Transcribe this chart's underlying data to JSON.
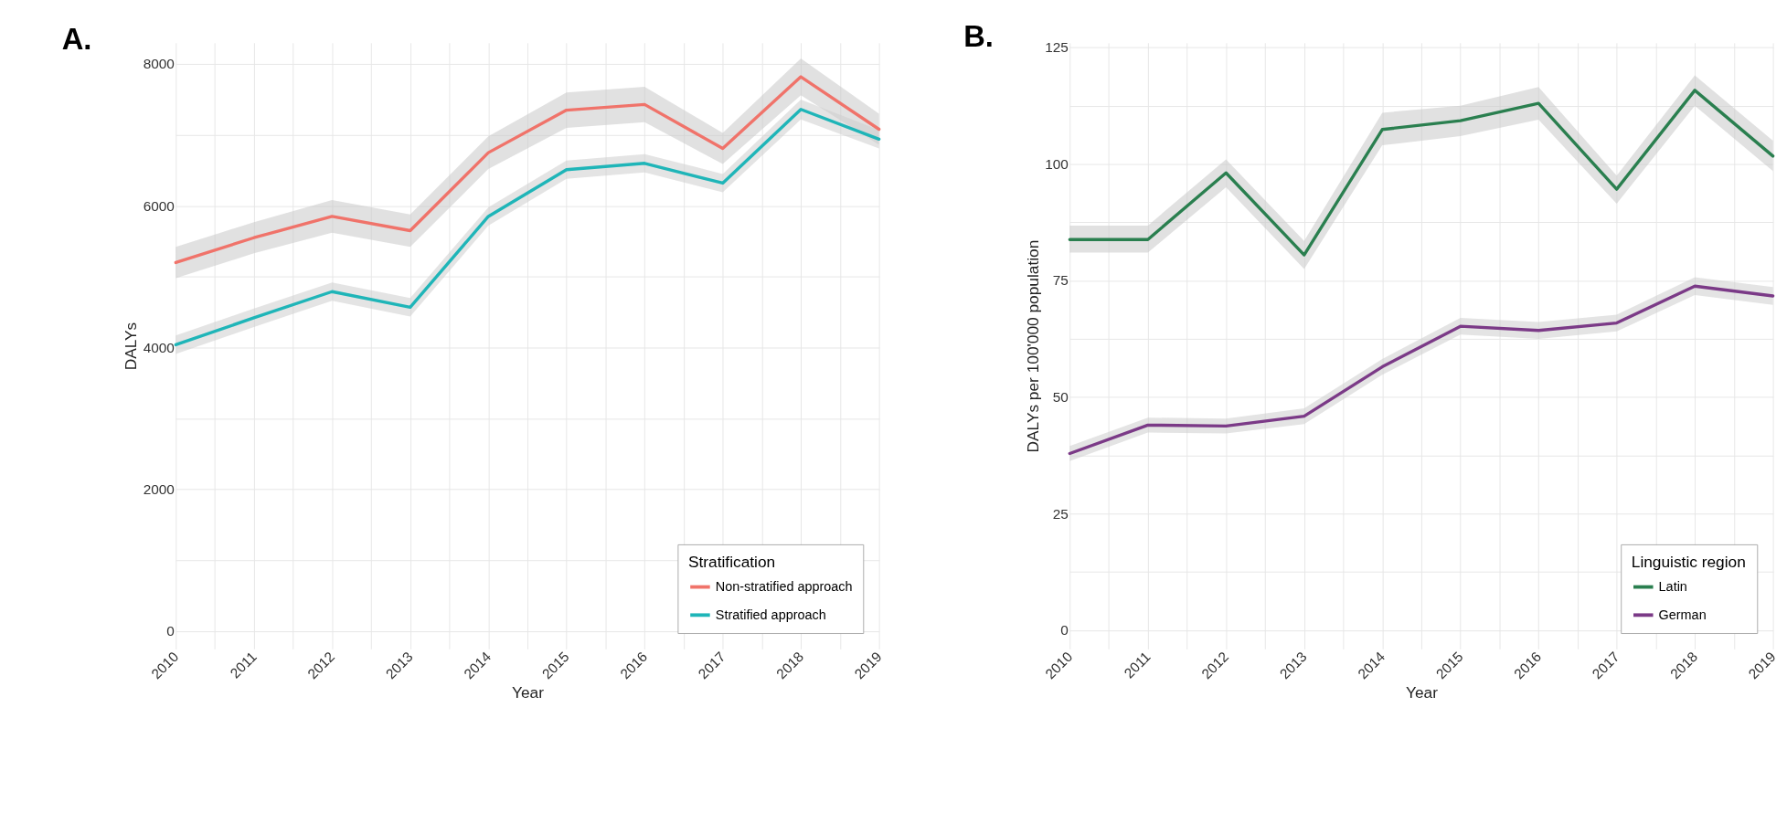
{
  "chart_data": [
    {
      "type": "line",
      "title": "A.",
      "xlabel": "Year",
      "ylabel": "DALYs",
      "legend_title": "Stratification",
      "legend": "bottom right",
      "grid": true,
      "line_style": "solid",
      "marker": "none",
      "x": [
        2010,
        2011,
        2012,
        2013,
        2014,
        2015,
        2016,
        2017,
        2018,
        2019
      ],
      "xlim": [
        2010,
        2019
      ],
      "xticks": [
        2010,
        {
          "value": 2010.5,
          "label": null
        },
        2011,
        {
          "value": 2011.5,
          "label": null
        },
        2012,
        {
          "value": 2012.5,
          "label": null
        },
        2013,
        {
          "value": 2013.5,
          "label": null
        },
        2014,
        {
          "value": 2014.5,
          "label": null
        },
        2015,
        {
          "value": 2015.5,
          "label": null
        },
        2016,
        {
          "value": 2016.5,
          "label": null
        },
        2017,
        {
          "value": 2017.5,
          "label": null
        },
        2018,
        {
          "value": 2018.5,
          "label": null
        },
        2019
      ],
      "ylim": [
        -250,
        8300
      ],
      "yticks": [
        0,
        {
          "value": 1000,
          "label": null
        },
        2000,
        {
          "value": 3000,
          "label": null
        },
        4000,
        {
          "value": 5000,
          "label": null
        },
        6000,
        {
          "value": 7000,
          "label": null
        },
        8000
      ],
      "series": [
        {
          "name": "Non-stratified approach",
          "color": "#f0736a",
          "values": [
            5200,
            5550,
            5850,
            5650,
            6750,
            7350,
            7430,
            6810,
            7820,
            7080
          ],
          "lower": [
            4980,
            5330,
            5620,
            5420,
            6520,
            7100,
            7180,
            6590,
            7560,
            6860
          ],
          "upper": [
            5420,
            5770,
            6080,
            5880,
            6980,
            7600,
            7680,
            7030,
            8080,
            7300
          ]
        },
        {
          "name": "Stratified approach",
          "color": "#1fb5b8",
          "values": [
            4040,
            4420,
            4790,
            4570,
            5850,
            6510,
            6600,
            6320,
            7360,
            6940
          ],
          "lower": [
            3910,
            4290,
            4660,
            4440,
            5720,
            6380,
            6470,
            6190,
            7220,
            6810
          ],
          "upper": [
            4170,
            4550,
            4920,
            4700,
            5980,
            6640,
            6730,
            6450,
            7500,
            7070
          ]
        }
      ]
    },
    {
      "type": "line",
      "title": "B.",
      "xlabel": "Year",
      "ylabel": "DALYs per 100'000 population",
      "legend_title": "Linguistic region",
      "legend": "bottom right",
      "grid": true,
      "line_style": "solid",
      "marker": "none",
      "x": [
        2010,
        2011,
        2012,
        2013,
        2014,
        2015,
        2016,
        2017,
        2018,
        2019
      ],
      "xlim": [
        2010,
        2019
      ],
      "xticks": [
        2010,
        {
          "value": 2010.5,
          "label": null
        },
        2011,
        {
          "value": 2011.5,
          "label": null
        },
        2012,
        {
          "value": 2012.5,
          "label": null
        },
        2013,
        {
          "value": 2013.5,
          "label": null
        },
        2014,
        {
          "value": 2014.5,
          "label": null
        },
        2015,
        {
          "value": 2015.5,
          "label": null
        },
        2016,
        {
          "value": 2016.5,
          "label": null
        },
        2017,
        {
          "value": 2017.5,
          "label": null
        },
        2018,
        {
          "value": 2018.5,
          "label": null
        },
        2019
      ],
      "ylim": [
        -4,
        126
      ],
      "yticks": [
        0,
        {
          "value": 12.5,
          "label": null
        },
        25,
        {
          "value": 37.5,
          "label": null
        },
        50,
        {
          "value": 62.5,
          "label": null
        },
        75,
        {
          "value": 87.5,
          "label": null
        },
        100,
        {
          "value": 112.5,
          "label": null
        },
        125
      ],
      "series": [
        {
          "name": "Latin",
          "color": "#2a7f4f",
          "values": [
            83.8,
            83.8,
            98.1,
            80.5,
            107.4,
            109.3,
            113,
            94.6,
            115.8,
            101.7
          ],
          "lower": [
            81,
            81,
            95,
            77.5,
            104,
            106,
            109.5,
            91.5,
            112.5,
            98.5
          ],
          "upper": [
            86.8,
            86.8,
            101,
            83.5,
            111,
            112.5,
            116.5,
            97.5,
            119,
            105
          ]
        },
        {
          "name": "German",
          "color": "#7b3a87",
          "values": [
            37.9,
            44,
            43.8,
            45.9,
            56.5,
            65.2,
            64.3,
            65.9,
            73.8,
            71.7
          ],
          "lower": [
            36.3,
            42.4,
            42.2,
            44.2,
            54.8,
            63.4,
            62.5,
            64.1,
            71.9,
            69.8
          ],
          "upper": [
            39.5,
            45.6,
            45.4,
            47.6,
            58.2,
            67,
            66.1,
            67.7,
            75.7,
            73.6
          ]
        }
      ]
    }
  ]
}
